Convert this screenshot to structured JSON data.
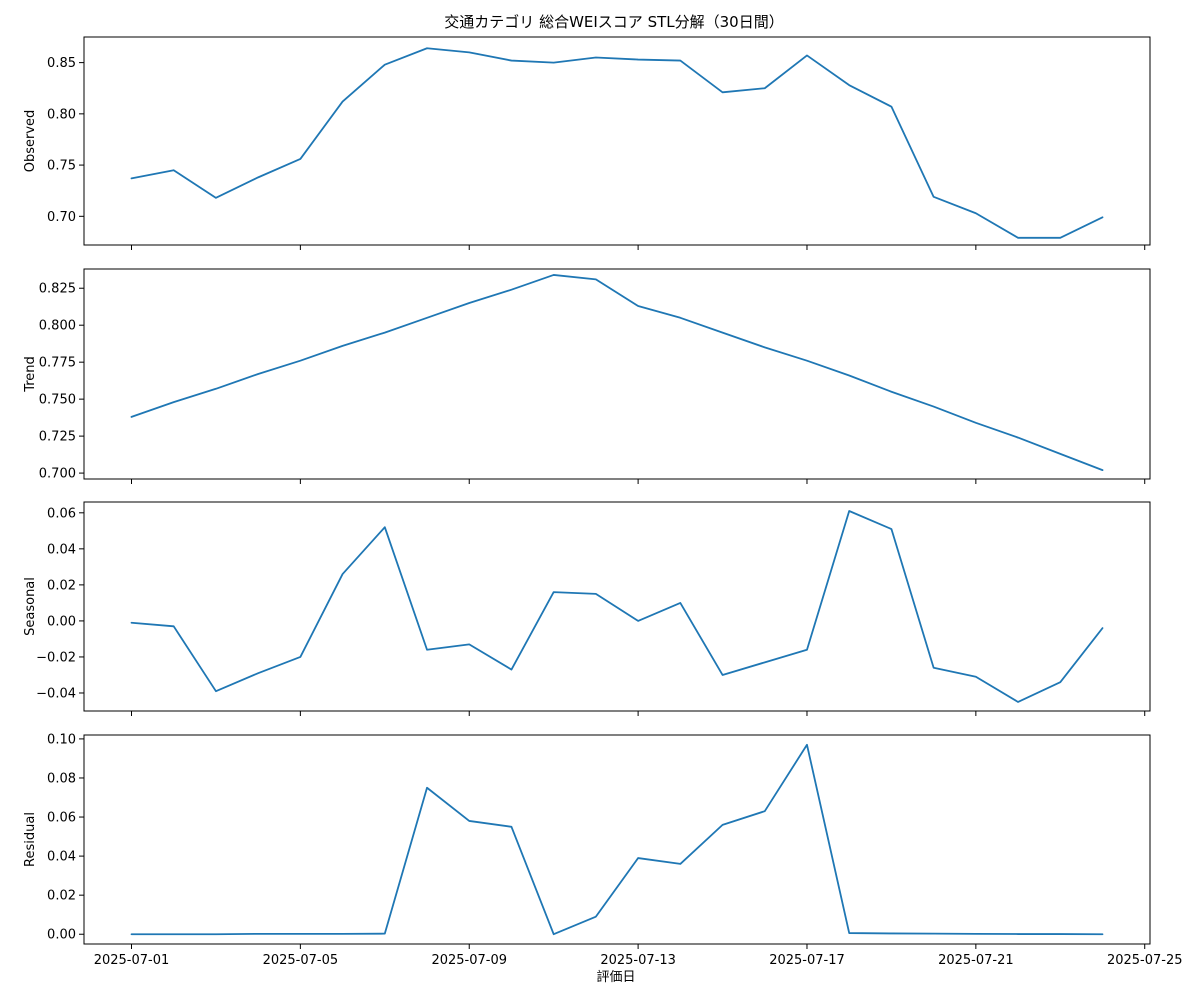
{
  "chart_data": {
    "type": "line",
    "title": "交通カテゴリ 総合WEIスコア STL分解（30日間）",
    "xlabel": "評価日",
    "x": [
      "2025-07-01",
      "2025-07-02",
      "2025-07-03",
      "2025-07-04",
      "2025-07-05",
      "2025-07-06",
      "2025-07-07",
      "2025-07-08",
      "2025-07-09",
      "2025-07-10",
      "2025-07-11",
      "2025-07-12",
      "2025-07-13",
      "2025-07-14",
      "2025-07-15",
      "2025-07-16",
      "2025-07-17",
      "2025-07-18",
      "2025-07-19",
      "2025-07-20",
      "2025-07-21",
      "2025-07-22",
      "2025-07-23",
      "2025-07-24"
    ],
    "x_ticks": [
      "2025-07-01",
      "2025-07-05",
      "2025-07-09",
      "2025-07-13",
      "2025-07-17",
      "2025-07-21",
      "2025-07-25"
    ],
    "xlim": [
      "2025-06-29T21:00",
      "2025-07-25T03:00"
    ],
    "line_color": "#1f77b4",
    "grid": false,
    "panels": [
      {
        "name": "Observed",
        "ylabel": "Observed",
        "ylim": [
          0.672,
          0.875
        ],
        "yticks": [
          "0.70",
          "0.75",
          "0.80",
          "0.85"
        ],
        "ytick_values": [
          0.7,
          0.75,
          0.8,
          0.85
        ],
        "values": [
          0.737,
          0.745,
          0.718,
          0.738,
          0.756,
          0.812,
          0.848,
          0.864,
          0.86,
          0.852,
          0.85,
          0.855,
          0.853,
          0.852,
          0.821,
          0.825,
          0.857,
          0.828,
          0.807,
          0.719,
          0.703,
          0.679,
          0.679,
          0.699
        ]
      },
      {
        "name": "Trend",
        "ylabel": "Trend",
        "ylim": [
          0.696,
          0.838
        ],
        "yticks": [
          "0.700",
          "0.725",
          "0.750",
          "0.775",
          "0.800",
          "0.825"
        ],
        "ytick_values": [
          0.7,
          0.725,
          0.75,
          0.775,
          0.8,
          0.825
        ],
        "values": [
          0.738,
          0.748,
          0.757,
          0.767,
          0.776,
          0.786,
          0.795,
          0.805,
          0.815,
          0.824,
          0.834,
          0.831,
          0.813,
          0.805,
          0.795,
          0.785,
          0.776,
          0.766,
          0.755,
          0.745,
          0.734,
          0.724,
          0.713,
          0.702
        ]
      },
      {
        "name": "Seasonal",
        "ylabel": "Seasonal",
        "ylim": [
          -0.05,
          0.066
        ],
        "yticks": [
          "−0.04",
          "−0.02",
          "0.00",
          "0.02",
          "0.04",
          "0.06"
        ],
        "ytick_values": [
          -0.04,
          -0.02,
          0.0,
          0.02,
          0.04,
          0.06
        ],
        "values": [
          -0.001,
          -0.003,
          -0.039,
          -0.029,
          -0.02,
          0.026,
          0.052,
          -0.016,
          -0.013,
          -0.027,
          0.016,
          0.015,
          0.0,
          0.01,
          -0.03,
          -0.023,
          -0.016,
          0.061,
          0.051,
          -0.026,
          -0.031,
          -0.045,
          -0.034,
          -0.004
        ]
      },
      {
        "name": "Residual",
        "ylabel": "Residual",
        "ylim": [
          -0.005,
          0.102
        ],
        "yticks": [
          "0.00",
          "0.02",
          "0.04",
          "0.06",
          "0.08",
          "0.10"
        ],
        "ytick_values": [
          0.0,
          0.02,
          0.04,
          0.06,
          0.08,
          0.1
        ],
        "values": [
          0.0,
          0.0,
          0.0,
          0.0002,
          0.0002,
          0.0002,
          0.0003,
          0.075,
          0.058,
          0.055,
          0.0,
          0.009,
          0.039,
          0.036,
          0.056,
          0.063,
          0.097,
          0.0006,
          0.0004,
          0.0003,
          0.0002,
          0.0001,
          0.0001,
          0.0
        ]
      }
    ]
  }
}
